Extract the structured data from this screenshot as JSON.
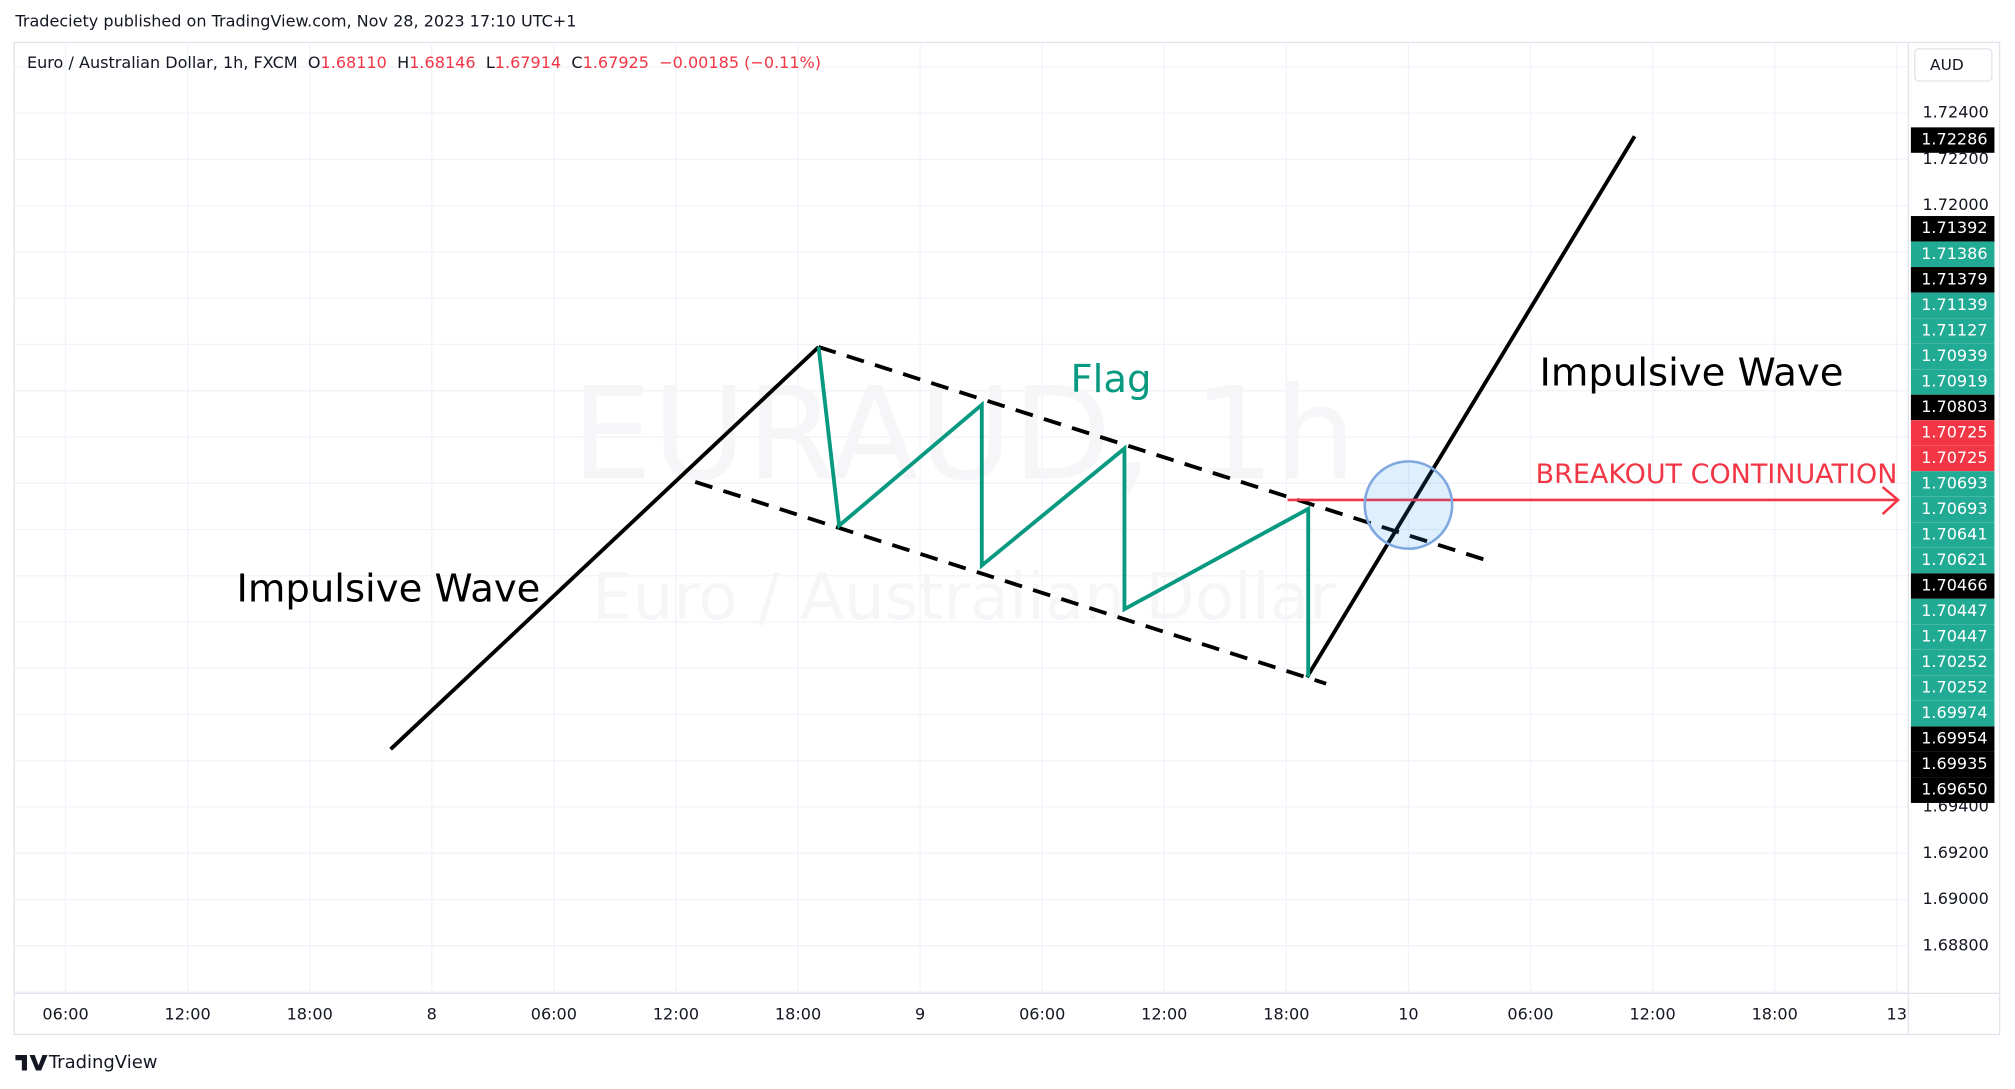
{
  "header": {
    "published": "Tradeciety published on TradingView.com, Nov 28, 2023 17:10 UTC+1"
  },
  "legend": {
    "symbol": "Euro / Australian Dollar, 1h, FXCM",
    "open_label": "O",
    "open": "1.68110",
    "high_label": "H",
    "high": "1.68146",
    "low_label": "L",
    "low": "1.67914",
    "close_label": "C",
    "close": "1.67925",
    "change": "−0.00185 (−0.11%)"
  },
  "currency": "AUD",
  "watermark": {
    "symbol": "EURAUD, 1h",
    "description": "Euro / Australian Dollar"
  },
  "price_axis": {
    "ticks": [
      "1.72400",
      "1.72200",
      "1.72000",
      "1.69400",
      "1.69200",
      "1.69000",
      "1.68800"
    ]
  },
  "price_badges": [
    {
      "label": "1.72286",
      "color": "#000000"
    },
    {
      "label": "1.71392",
      "color": "#000000"
    },
    {
      "label": "1.71386",
      "color": "#22ab94"
    },
    {
      "label": "1.71379",
      "color": "#000000"
    },
    {
      "label": "1.71139",
      "color": "#22ab94"
    },
    {
      "label": "1.71127",
      "color": "#22ab94"
    },
    {
      "label": "1.70939",
      "color": "#22ab94"
    },
    {
      "label": "1.70919",
      "color": "#22ab94"
    },
    {
      "label": "1.70803",
      "color": "#000000"
    },
    {
      "label": "1.70725",
      "color": "#f23645"
    },
    {
      "label": "1.70725",
      "color": "#f23645"
    },
    {
      "label": "1.70693",
      "color": "#22ab94"
    },
    {
      "label": "1.70693",
      "color": "#22ab94"
    },
    {
      "label": "1.70641",
      "color": "#22ab94"
    },
    {
      "label": "1.70621",
      "color": "#22ab94"
    },
    {
      "label": "1.70466",
      "color": "#000000"
    },
    {
      "label": "1.70447",
      "color": "#22ab94"
    },
    {
      "label": "1.70447",
      "color": "#22ab94"
    },
    {
      "label": "1.70252",
      "color": "#22ab94"
    },
    {
      "label": "1.70252",
      "color": "#22ab94"
    },
    {
      "label": "1.69974",
      "color": "#22ab94"
    },
    {
      "label": "1.69954",
      "color": "#000000"
    },
    {
      "label": "1.69935",
      "color": "#000000"
    },
    {
      "label": "1.69650",
      "color": "#000000"
    }
  ],
  "time_axis": {
    "ticks": [
      "06:00",
      "12:00",
      "18:00",
      "8",
      "06:00",
      "12:00",
      "18:00",
      "9",
      "06:00",
      "12:00",
      "18:00",
      "10",
      "06:00",
      "12:00",
      "18:00",
      "13"
    ]
  },
  "annotations": {
    "left_wave": "Impulsive Wave",
    "right_wave": "Impulsive Wave",
    "flag": "Flag",
    "breakout": "BREAKOUT CONTINUATION"
  },
  "footer": {
    "brand": "TradingView"
  }
}
